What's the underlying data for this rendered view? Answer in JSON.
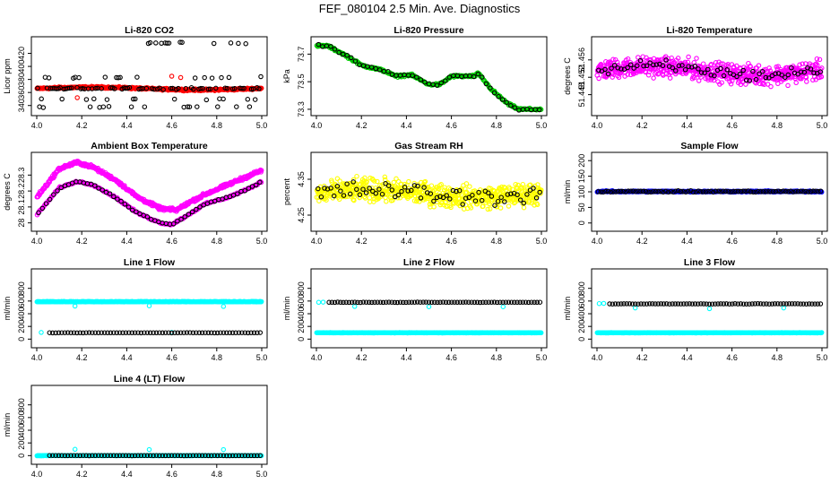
{
  "title": "FEF_080104  2.5 Min. Ave. Diagnostics",
  "chart_data": [
    {
      "type": "scatter",
      "title": "Li-820 CO2",
      "ylabel": "Licor ppm",
      "xlim": [
        4.0,
        5.0
      ],
      "xticks": [
        "4.0",
        "4.2",
        "4.4",
        "4.6",
        "4.8",
        "5.0"
      ],
      "ylim": [
        330,
        440
      ],
      "yticks": [
        340,
        360,
        380,
        400,
        420
      ],
      "series": [
        {
          "name": "highlight",
          "color": "#ff0000",
          "pattern": "band",
          "base": 366,
          "amp": 2,
          "noise": 2,
          "n": 400,
          "extras": [
            [
              4.18,
              352
            ],
            [
              4.6,
              385
            ],
            [
              4.64,
              383
            ]
          ]
        },
        {
          "name": "points",
          "color": "#000000",
          "pattern": "mixed",
          "levels": [
            436,
            366,
            350,
            338,
            383
          ],
          "n": 120
        }
      ]
    },
    {
      "type": "scatter",
      "title": "Li-820 Pressure",
      "ylabel": "kPa",
      "xlim": [
        4.0,
        5.0
      ],
      "xticks": [
        "4.0",
        "4.2",
        "4.4",
        "4.6",
        "4.8",
        "5.0"
      ],
      "ylim": [
        73.28,
        73.8
      ],
      "yticks": [
        73.3,
        73.5,
        73.7
      ],
      "series": [
        {
          "name": "highlight",
          "color": "#00cc00",
          "pattern": "path",
          "path": [
            [
              4.0,
              73.76
            ],
            [
              4.05,
              73.76
            ],
            [
              4.12,
              73.7
            ],
            [
              4.2,
              73.62
            ],
            [
              4.3,
              73.58
            ],
            [
              4.35,
              73.54
            ],
            [
              4.42,
              73.55
            ],
            [
              4.5,
              73.48
            ],
            [
              4.55,
              73.48
            ],
            [
              4.6,
              73.54
            ],
            [
              4.7,
              73.54
            ],
            [
              4.72,
              73.56
            ],
            [
              4.78,
              73.44
            ],
            [
              4.85,
              73.34
            ],
            [
              4.9,
              73.3
            ],
            [
              5.0,
              73.3
            ]
          ],
          "noise": 0.012,
          "n": 300
        },
        {
          "name": "points",
          "color": "#000000",
          "pattern": "path",
          "path": [
            [
              4.0,
              73.76
            ],
            [
              4.05,
              73.76
            ],
            [
              4.12,
              73.7
            ],
            [
              4.2,
              73.62
            ],
            [
              4.3,
              73.58
            ],
            [
              4.35,
              73.54
            ],
            [
              4.42,
              73.55
            ],
            [
              4.5,
              73.48
            ],
            [
              4.55,
              73.48
            ],
            [
              4.6,
              73.54
            ],
            [
              4.7,
              73.54
            ],
            [
              4.72,
              73.56
            ],
            [
              4.78,
              73.44
            ],
            [
              4.85,
              73.34
            ],
            [
              4.9,
              73.3
            ],
            [
              5.0,
              73.3
            ]
          ],
          "noise": 0.012,
          "n": 55
        }
      ]
    },
    {
      "type": "scatter",
      "title": "Li-820 Temperature",
      "ylabel": "degrees C",
      "xlim": [
        4.0,
        5.0
      ],
      "xticks": [
        "4.0",
        "4.2",
        "4.4",
        "4.6",
        "4.8",
        "5.0"
      ],
      "ylim": [
        51.444,
        51.4605
      ],
      "yticks": [
        51.448,
        51.452,
        51.456
      ],
      "series": [
        {
          "name": "highlight",
          "color": "#ff00ff",
          "pattern": "band",
          "base": 51.4535,
          "amp": 0.001,
          "noise": 0.0032,
          "n": 650
        },
        {
          "name": "points",
          "color": "#000000",
          "pattern": "band",
          "base": 51.4535,
          "amp": 0.001,
          "noise": 0.0022,
          "n": 70
        }
      ]
    },
    {
      "type": "scatter",
      "title": "Ambient Box Temperature",
      "ylabel": "degrees C",
      "xlim": [
        4.0,
        5.0
      ],
      "xticks": [
        "4.0",
        "4.2",
        "4.4",
        "4.6",
        "4.8",
        "5.0"
      ],
      "ylim": [
        27.97,
        28.42
      ],
      "yticks": [
        28.0,
        28.1,
        28.2,
        28.3
      ],
      "series": [
        {
          "name": "highlight",
          "color": "#ff00ff",
          "pattern": "path",
          "path": [
            [
              4.0,
              28.16
            ],
            [
              4.1,
              28.34
            ],
            [
              4.18,
              28.38
            ],
            [
              4.25,
              28.35
            ],
            [
              4.35,
              28.27
            ],
            [
              4.45,
              28.16
            ],
            [
              4.55,
              28.09
            ],
            [
              4.62,
              28.08
            ],
            [
              4.68,
              28.13
            ],
            [
              4.75,
              28.18
            ],
            [
              4.85,
              28.24
            ],
            [
              4.95,
              28.3
            ],
            [
              5.0,
              28.33
            ]
          ],
          "noise": 0.015,
          "n": 450
        },
        {
          "name": "highlight2",
          "color": "#ff00ff",
          "pattern": "path",
          "path": [
            [
              4.0,
              28.05
            ],
            [
              4.1,
              28.22
            ],
            [
              4.18,
              28.26
            ],
            [
              4.25,
              28.24
            ],
            [
              4.35,
              28.16
            ],
            [
              4.45,
              28.06
            ],
            [
              4.55,
              28.0
            ],
            [
              4.6,
              27.99
            ],
            [
              4.66,
              28.04
            ],
            [
              4.75,
              28.12
            ],
            [
              4.85,
              28.16
            ],
            [
              4.95,
              28.22
            ],
            [
              5.0,
              28.26
            ]
          ],
          "noise": 0.008,
          "n": 250
        },
        {
          "name": "points",
          "color": "#000000",
          "pattern": "path",
          "path": [
            [
              4.0,
              28.05
            ],
            [
              4.1,
              28.22
            ],
            [
              4.18,
              28.26
            ],
            [
              4.25,
              28.24
            ],
            [
              4.35,
              28.16
            ],
            [
              4.45,
              28.06
            ],
            [
              4.55,
              28.0
            ],
            [
              4.6,
              27.99
            ],
            [
              4.66,
              28.04
            ],
            [
              4.75,
              28.12
            ],
            [
              4.85,
              28.16
            ],
            [
              4.95,
              28.22
            ],
            [
              5.0,
              28.26
            ]
          ],
          "noise": 0.006,
          "n": 60
        }
      ]
    },
    {
      "type": "scatter",
      "title": "Gas Stream RH",
      "ylabel": "percent",
      "xlim": [
        4.0,
        5.0
      ],
      "xticks": [
        "4.0",
        "4.2",
        "4.4",
        "4.6",
        "4.8",
        "5.0"
      ],
      "ylim": [
        4.215,
        4.415
      ],
      "yticks": [
        4.25,
        4.35
      ],
      "series": [
        {
          "name": "highlight",
          "color": "#ffff00",
          "pattern": "band",
          "base": 4.31,
          "amp": 0.01,
          "noise": 0.045,
          "n": 650
        },
        {
          "name": "points",
          "color": "#000000",
          "pattern": "band",
          "base": 4.31,
          "amp": 0.01,
          "noise": 0.035,
          "n": 70
        }
      ]
    },
    {
      "type": "scatter",
      "title": "Sample Flow",
      "ylabel": "ml/min",
      "xlim": [
        4.0,
        5.0
      ],
      "xticks": [
        "4.0",
        "4.2",
        "4.4",
        "4.6",
        "4.8",
        "5.0"
      ],
      "ylim": [
        -15,
        215
      ],
      "yticks": [
        0,
        50,
        100,
        150,
        200
      ],
      "series": [
        {
          "name": "highlight",
          "color": "#0000ff",
          "pattern": "band",
          "base": 101,
          "amp": 0,
          "noise": 3,
          "n": 400
        },
        {
          "name": "points",
          "color": "#000000",
          "pattern": "band",
          "base": 101,
          "amp": 0,
          "noise": 3,
          "n": 90
        }
      ]
    },
    {
      "type": "scatter",
      "title": "Line 1 Flow",
      "ylabel": "ml/min",
      "xlim": [
        4.0,
        5.0
      ],
      "xticks": [
        "4.0",
        "4.2",
        "4.4",
        "4.6",
        "4.8",
        "5.0"
      ],
      "ylim": [
        -80,
        1050
      ],
      "yticks": [
        0,
        200,
        400,
        600,
        800
      ],
      "series": [
        {
          "name": "highlight",
          "color": "#00ffff",
          "pattern": "band",
          "base": 590,
          "amp": 0,
          "noise": 6,
          "n": 450,
          "extras": [
            [
              4.17,
              520
            ],
            [
              4.5,
              525
            ],
            [
              4.83,
              515
            ],
            [
              4.02,
              105
            ],
            [
              4.6,
              105
            ]
          ]
        },
        {
          "name": "points",
          "color": "#000000",
          "pattern": "band",
          "base": 100,
          "amp": 0,
          "noise": 3,
          "n": 70,
          "xmin": 4.05
        }
      ]
    },
    {
      "type": "scatter",
      "title": "Line 2 Flow",
      "ylabel": "ml/min",
      "xlim": [
        4.0,
        5.0
      ],
      "xticks": [
        "4.0",
        "4.2",
        "4.4",
        "4.6",
        "4.8",
        "5.0"
      ],
      "ylim": [
        -80,
        1050
      ],
      "yticks": [
        0,
        200,
        400,
        600,
        800
      ],
      "series": [
        {
          "name": "highlight",
          "color": "#00ffff",
          "pattern": "band",
          "base": 100,
          "amp": 0,
          "noise": 4,
          "n": 450,
          "extras": [
            [
              4.01,
              580
            ],
            [
              4.03,
              582
            ],
            [
              4.17,
              515
            ],
            [
              4.5,
              510
            ],
            [
              4.83,
              510
            ]
          ]
        },
        {
          "name": "points",
          "color": "#000000",
          "pattern": "band",
          "base": 580,
          "amp": 0,
          "noise": 4,
          "n": 75,
          "xmin": 4.05
        }
      ]
    },
    {
      "type": "scatter",
      "title": "Line 3 Flow",
      "ylabel": "ml/min",
      "xlim": [
        4.0,
        5.0
      ],
      "xticks": [
        "4.0",
        "4.2",
        "4.4",
        "4.6",
        "4.8",
        "5.0"
      ],
      "ylim": [
        -80,
        1050
      ],
      "yticks": [
        0,
        200,
        400,
        600,
        800
      ],
      "series": [
        {
          "name": "highlight",
          "color": "#00ffff",
          "pattern": "band",
          "base": 100,
          "amp": 0,
          "noise": 4,
          "n": 450,
          "extras": [
            [
              4.01,
              560
            ],
            [
              4.03,
              562
            ],
            [
              4.17,
              490
            ],
            [
              4.5,
              480
            ],
            [
              4.83,
              490
            ]
          ]
        },
        {
          "name": "points",
          "color": "#000000",
          "pattern": "band",
          "base": 555,
          "amp": 0,
          "noise": 5,
          "n": 75,
          "xmin": 4.05
        }
      ]
    },
    {
      "type": "scatter",
      "title": "Line 4 (LT) Flow",
      "ylabel": "ml/min",
      "xlim": [
        4.0,
        5.0
      ],
      "xticks": [
        "4.0",
        "4.2",
        "4.4",
        "4.6",
        "4.8",
        "5.0"
      ],
      "ylim": [
        -80,
        1050
      ],
      "yticks": [
        0,
        200,
        400,
        600,
        800
      ],
      "series": [
        {
          "name": "highlight",
          "color": "#00ffff",
          "pattern": "band",
          "base": 0,
          "amp": 0,
          "noise": 3,
          "n": 400,
          "extras": [
            [
              4.17,
              100
            ],
            [
              4.5,
              95
            ],
            [
              4.83,
              95
            ]
          ]
        },
        {
          "name": "points",
          "color": "#000000",
          "pattern": "band",
          "base": 0,
          "amp": 0,
          "noise": 3,
          "n": 70,
          "xmin": 4.05
        }
      ]
    }
  ]
}
